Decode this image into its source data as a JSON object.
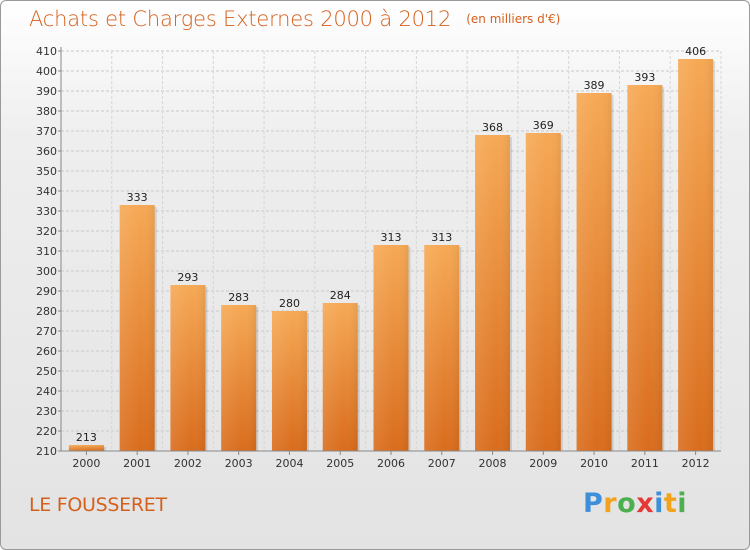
{
  "header": {
    "title": "Achats et Charges Externes 2000 à 2012",
    "unit": "(en milliers d'€)"
  },
  "footer": {
    "commune": "LE FOUSSERET",
    "logo_letters": [
      {
        "ch": "P",
        "color": "#3c8fd8"
      },
      {
        "ch": "r",
        "color": "#f2a21b"
      },
      {
        "ch": "o",
        "color": "#4caf50"
      },
      {
        "ch": "x",
        "color": "#e53935"
      },
      {
        "ch": "i",
        "color": "#3c8fd8"
      },
      {
        "ch": "t",
        "color": "#f2a21b"
      },
      {
        "ch": "i",
        "color": "#4caf50"
      }
    ]
  },
  "chart_data": {
    "type": "bar",
    "categories": [
      "2000",
      "2001",
      "2002",
      "2003",
      "2004",
      "2005",
      "2006",
      "2007",
      "2008",
      "2009",
      "2010",
      "2011",
      "2012"
    ],
    "values": [
      213,
      333,
      293,
      283,
      280,
      284,
      313,
      313,
      368,
      369,
      389,
      393,
      406
    ],
    "title": "Achats et Charges Externes 2000 à 2012",
    "ylim": [
      210,
      410
    ],
    "ytick_step": 10,
    "grid": "horizontal",
    "bar_color": "#f0a04b",
    "bar_color_dark": "#d9701f"
  }
}
